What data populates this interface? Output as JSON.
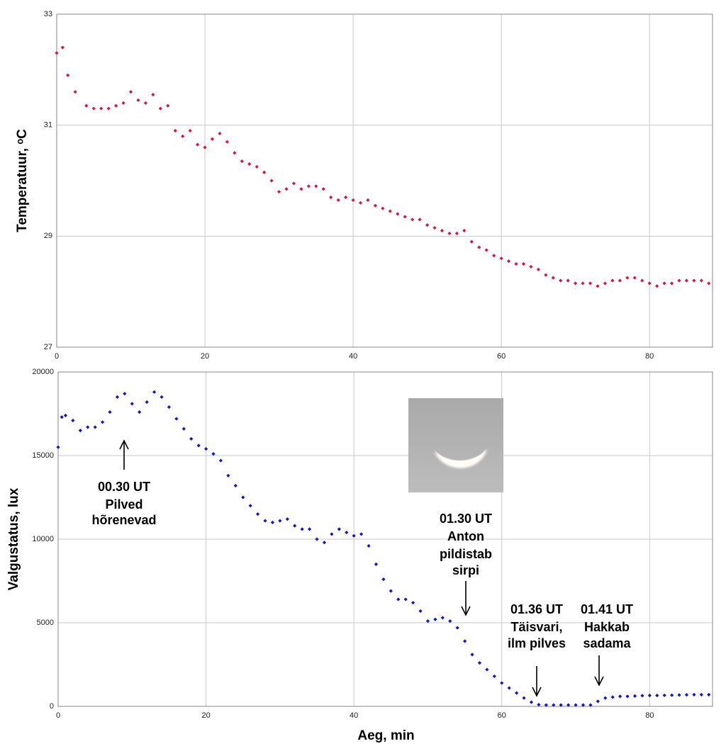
{
  "chart_data": [
    {
      "type": "scatter",
      "ylabel": "Temperatuur, ᵒC",
      "color": "#dc1440",
      "xlim": [
        0,
        88.5
      ],
      "ylim": [
        27,
        33
      ],
      "xticks": [
        0,
        20,
        40,
        60,
        80
      ],
      "yticks": [
        27,
        29,
        31,
        33
      ],
      "grid": true,
      "x": [
        0,
        0.8,
        1.5,
        2.5,
        4,
        5,
        6,
        7,
        8,
        9,
        10,
        11,
        12,
        13,
        14,
        15,
        16,
        17,
        18,
        19,
        20,
        21,
        22,
        23,
        24,
        25,
        26,
        27,
        28,
        29,
        30,
        31,
        32,
        33,
        34,
        35,
        36,
        37,
        38,
        39,
        40,
        41,
        42,
        43,
        44,
        45,
        46,
        47,
        48,
        49,
        50,
        51,
        52,
        53,
        54,
        55,
        56,
        57,
        58,
        59,
        60,
        61,
        62,
        63,
        64,
        65,
        66,
        67,
        68,
        69,
        70,
        71,
        72,
        73,
        74,
        75,
        76,
        77,
        78,
        79,
        80,
        81,
        82,
        83,
        84,
        85,
        86,
        87,
        88
      ],
      "values": [
        32.3,
        32.4,
        31.9,
        31.6,
        31.35,
        31.3,
        31.3,
        31.3,
        31.35,
        31.4,
        31.6,
        31.45,
        31.4,
        31.55,
        31.3,
        31.35,
        30.9,
        30.8,
        30.9,
        30.65,
        30.6,
        30.75,
        30.85,
        30.7,
        30.5,
        30.35,
        30.3,
        30.25,
        30.15,
        30.0,
        29.8,
        29.85,
        29.95,
        29.85,
        29.9,
        29.9,
        29.85,
        29.7,
        29.65,
        29.7,
        29.65,
        29.6,
        29.65,
        29.55,
        29.5,
        29.45,
        29.4,
        29.35,
        29.3,
        29.3,
        29.2,
        29.15,
        29.1,
        29.05,
        29.05,
        29.1,
        28.9,
        28.8,
        28.75,
        28.65,
        28.6,
        28.55,
        28.5,
        28.5,
        28.45,
        28.4,
        28.3,
        28.25,
        28.2,
        28.2,
        28.15,
        28.15,
        28.15,
        28.1,
        28.15,
        28.2,
        28.2,
        28.25,
        28.25,
        28.2,
        28.15,
        28.1,
        28.15,
        28.15,
        28.2,
        28.2,
        28.2,
        28.2,
        28.15
      ]
    },
    {
      "type": "scatter",
      "ylabel": "Valgustatus, lux",
      "xlabel": "Aeg, min",
      "color": "#1414d2",
      "xlim": [
        0,
        88.5
      ],
      "ylim": [
        0,
        20000
      ],
      "xticks": [
        0,
        20,
        40,
        60,
        80
      ],
      "yticks": [
        0,
        5000,
        10000,
        15000,
        20000
      ],
      "grid": true,
      "x": [
        0,
        0.5,
        1,
        2,
        3,
        4,
        5,
        6,
        7,
        8,
        9,
        10,
        11,
        12,
        13,
        14,
        15,
        16,
        17,
        18,
        19,
        20,
        21,
        22,
        23,
        24,
        25,
        26,
        27,
        28,
        29,
        30,
        31,
        32,
        33,
        34,
        35,
        36,
        37,
        38,
        39,
        40,
        41,
        42,
        43,
        44,
        45,
        46,
        47,
        48,
        49,
        50,
        51,
        52,
        53,
        54,
        55,
        56,
        57,
        58,
        59,
        60,
        61,
        62,
        63,
        64,
        65,
        66,
        67,
        68,
        69,
        70,
        71,
        72,
        73,
        74,
        75,
        76,
        77,
        78,
        79,
        80,
        81,
        82,
        83,
        84,
        85,
        86,
        87,
        88
      ],
      "values": [
        15500,
        17300,
        17400,
        17100,
        16500,
        16700,
        16700,
        17000,
        17600,
        18500,
        18700,
        18100,
        17600,
        18200,
        18800,
        18500,
        17900,
        17200,
        16600,
        16000,
        15600,
        15400,
        15100,
        14700,
        13800,
        13200,
        12500,
        12000,
        11500,
        11100,
        11000,
        11100,
        11200,
        10800,
        10600,
        10600,
        10000,
        9800,
        10300,
        10600,
        10400,
        10200,
        10300,
        9600,
        8500,
        7600,
        6900,
        6400,
        6400,
        6200,
        5700,
        5100,
        5200,
        5300,
        5100,
        4700,
        3900,
        3100,
        2600,
        2200,
        1800,
        1400,
        1100,
        800,
        500,
        250,
        100,
        80,
        80,
        80,
        80,
        80,
        80,
        80,
        300,
        500,
        550,
        600,
        600,
        620,
        640,
        650,
        650,
        660,
        670,
        680,
        690,
        700,
        700,
        700
      ],
      "annotations": [
        [
          "00.30 UT",
          "Pilved",
          "hõrenevad"
        ],
        [
          "01.30 UT",
          "Anton",
          "pildistab",
          "sirpi"
        ],
        [
          "01.36 UT",
          "Täisvari,",
          "ilm pilves"
        ],
        [
          "01.41 UT",
          "Hakkab",
          "sadama"
        ]
      ]
    }
  ]
}
